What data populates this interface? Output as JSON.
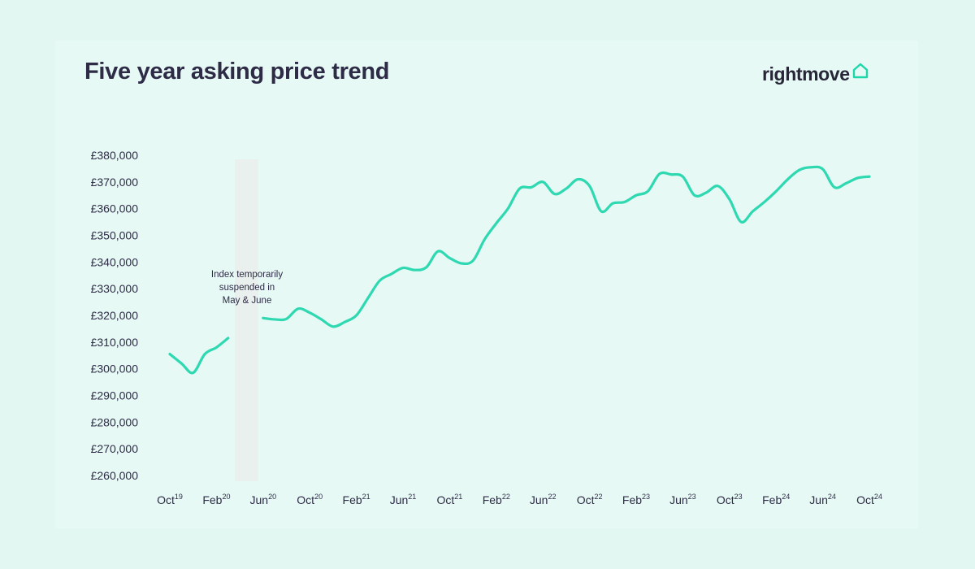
{
  "title": "Five year asking price trend",
  "brand": {
    "name": "rightmove",
    "icon": "house-outline-icon",
    "accent": "#1dd7a8"
  },
  "annotation": [
    "Index temporarily",
    "suspended in",
    "May & June"
  ],
  "chart_data": {
    "type": "line",
    "title": "Five year asking price trend",
    "xlabel": "",
    "ylabel": "",
    "ylim": [
      260000,
      380000
    ],
    "y_ticks": [
      "£380,000",
      "£370,000",
      "£360,000",
      "£350,000",
      "£340,000",
      "£330,000",
      "£320,000",
      "£310,000",
      "£300,000",
      "£290,000",
      "£280,000",
      "£270,000",
      "£260,000"
    ],
    "y_tick_values": [
      380000,
      370000,
      360000,
      350000,
      340000,
      330000,
      320000,
      310000,
      300000,
      290000,
      280000,
      270000,
      260000
    ],
    "x_ticks": [
      {
        "m": "Oct",
        "y": "19"
      },
      {
        "m": "Feb",
        "y": "20"
      },
      {
        "m": "Jun",
        "y": "20"
      },
      {
        "m": "Oct",
        "y": "20"
      },
      {
        "m": "Feb",
        "y": "21"
      },
      {
        "m": "Jun",
        "y": "21"
      },
      {
        "m": "Oct",
        "y": "21"
      },
      {
        "m": "Feb",
        "y": "22"
      },
      {
        "m": "Jun",
        "y": "22"
      },
      {
        "m": "Oct",
        "y": "22"
      },
      {
        "m": "Feb",
        "y": "23"
      },
      {
        "m": "Jun",
        "y": "23"
      },
      {
        "m": "Oct",
        "y": "23"
      },
      {
        "m": "Feb",
        "y": "24"
      },
      {
        "m": "Jun",
        "y": "24"
      },
      {
        "m": "Oct",
        "y": "24"
      }
    ],
    "suspended_period": [
      "2020-04",
      "2020-06"
    ],
    "line_color": "#2ed8b0",
    "grid": false,
    "series": [
      {
        "values": [
          {
            "x": "2019-10",
            "y": 305500
          },
          {
            "x": "2019-11",
            "y": 302000
          },
          {
            "x": "2019-12",
            "y": 298500
          },
          {
            "x": "2020-01",
            "y": 305500
          },
          {
            "x": "2020-02",
            "y": 308000
          },
          {
            "x": "2020-03",
            "y": 311500
          }
        ]
      },
      {
        "values": [
          {
            "x": "2020-06",
            "y": 319000
          },
          {
            "x": "2020-07",
            "y": 318500
          },
          {
            "x": "2020-08",
            "y": 318700
          },
          {
            "x": "2020-09",
            "y": 322500
          },
          {
            "x": "2020-10",
            "y": 321000
          },
          {
            "x": "2020-11",
            "y": 318500
          },
          {
            "x": "2020-12",
            "y": 315800
          },
          {
            "x": "2021-01",
            "y": 317500
          },
          {
            "x": "2021-02",
            "y": 320000
          },
          {
            "x": "2021-03",
            "y": 326500
          },
          {
            "x": "2021-04",
            "y": 333000
          },
          {
            "x": "2021-05",
            "y": 335500
          },
          {
            "x": "2021-06",
            "y": 337800
          },
          {
            "x": "2021-07",
            "y": 337000
          },
          {
            "x": "2021-08",
            "y": 338000
          },
          {
            "x": "2021-09",
            "y": 344000
          },
          {
            "x": "2021-10",
            "y": 341500
          },
          {
            "x": "2021-11",
            "y": 339500
          },
          {
            "x": "2021-12",
            "y": 340500
          },
          {
            "x": "2022-01",
            "y": 348500
          },
          {
            "x": "2022-02",
            "y": 354500
          },
          {
            "x": "2022-03",
            "y": 360000
          },
          {
            "x": "2022-04",
            "y": 367500
          },
          {
            "x": "2022-05",
            "y": 368000
          },
          {
            "x": "2022-06",
            "y": 370000
          },
          {
            "x": "2022-07",
            "y": 365500
          },
          {
            "x": "2022-08",
            "y": 367500
          },
          {
            "x": "2022-09",
            "y": 371000
          },
          {
            "x": "2022-10",
            "y": 368500
          },
          {
            "x": "2022-11",
            "y": 359000
          },
          {
            "x": "2022-12",
            "y": 362000
          },
          {
            "x": "2023-01",
            "y": 362500
          },
          {
            "x": "2023-02",
            "y": 365000
          },
          {
            "x": "2023-03",
            "y": 366500
          },
          {
            "x": "2023-04",
            "y": 373000
          },
          {
            "x": "2023-05",
            "y": 372800
          },
          {
            "x": "2023-06",
            "y": 372000
          },
          {
            "x": "2023-07",
            "y": 365000
          },
          {
            "x": "2023-08",
            "y": 366000
          },
          {
            "x": "2023-09",
            "y": 368500
          },
          {
            "x": "2023-10",
            "y": 363500
          },
          {
            "x": "2023-11",
            "y": 355000
          },
          {
            "x": "2023-12",
            "y": 359000
          },
          {
            "x": "2024-01",
            "y": 362500
          },
          {
            "x": "2024-02",
            "y": 366500
          },
          {
            "x": "2024-03",
            "y": 371000
          },
          {
            "x": "2024-04",
            "y": 374500
          },
          {
            "x": "2024-05",
            "y": 375500
          },
          {
            "x": "2024-06",
            "y": 374800
          },
          {
            "x": "2024-07",
            "y": 368000
          },
          {
            "x": "2024-08",
            "y": 369500
          },
          {
            "x": "2024-09",
            "y": 371500
          },
          {
            "x": "2024-10",
            "y": 372000
          }
        ]
      }
    ]
  }
}
